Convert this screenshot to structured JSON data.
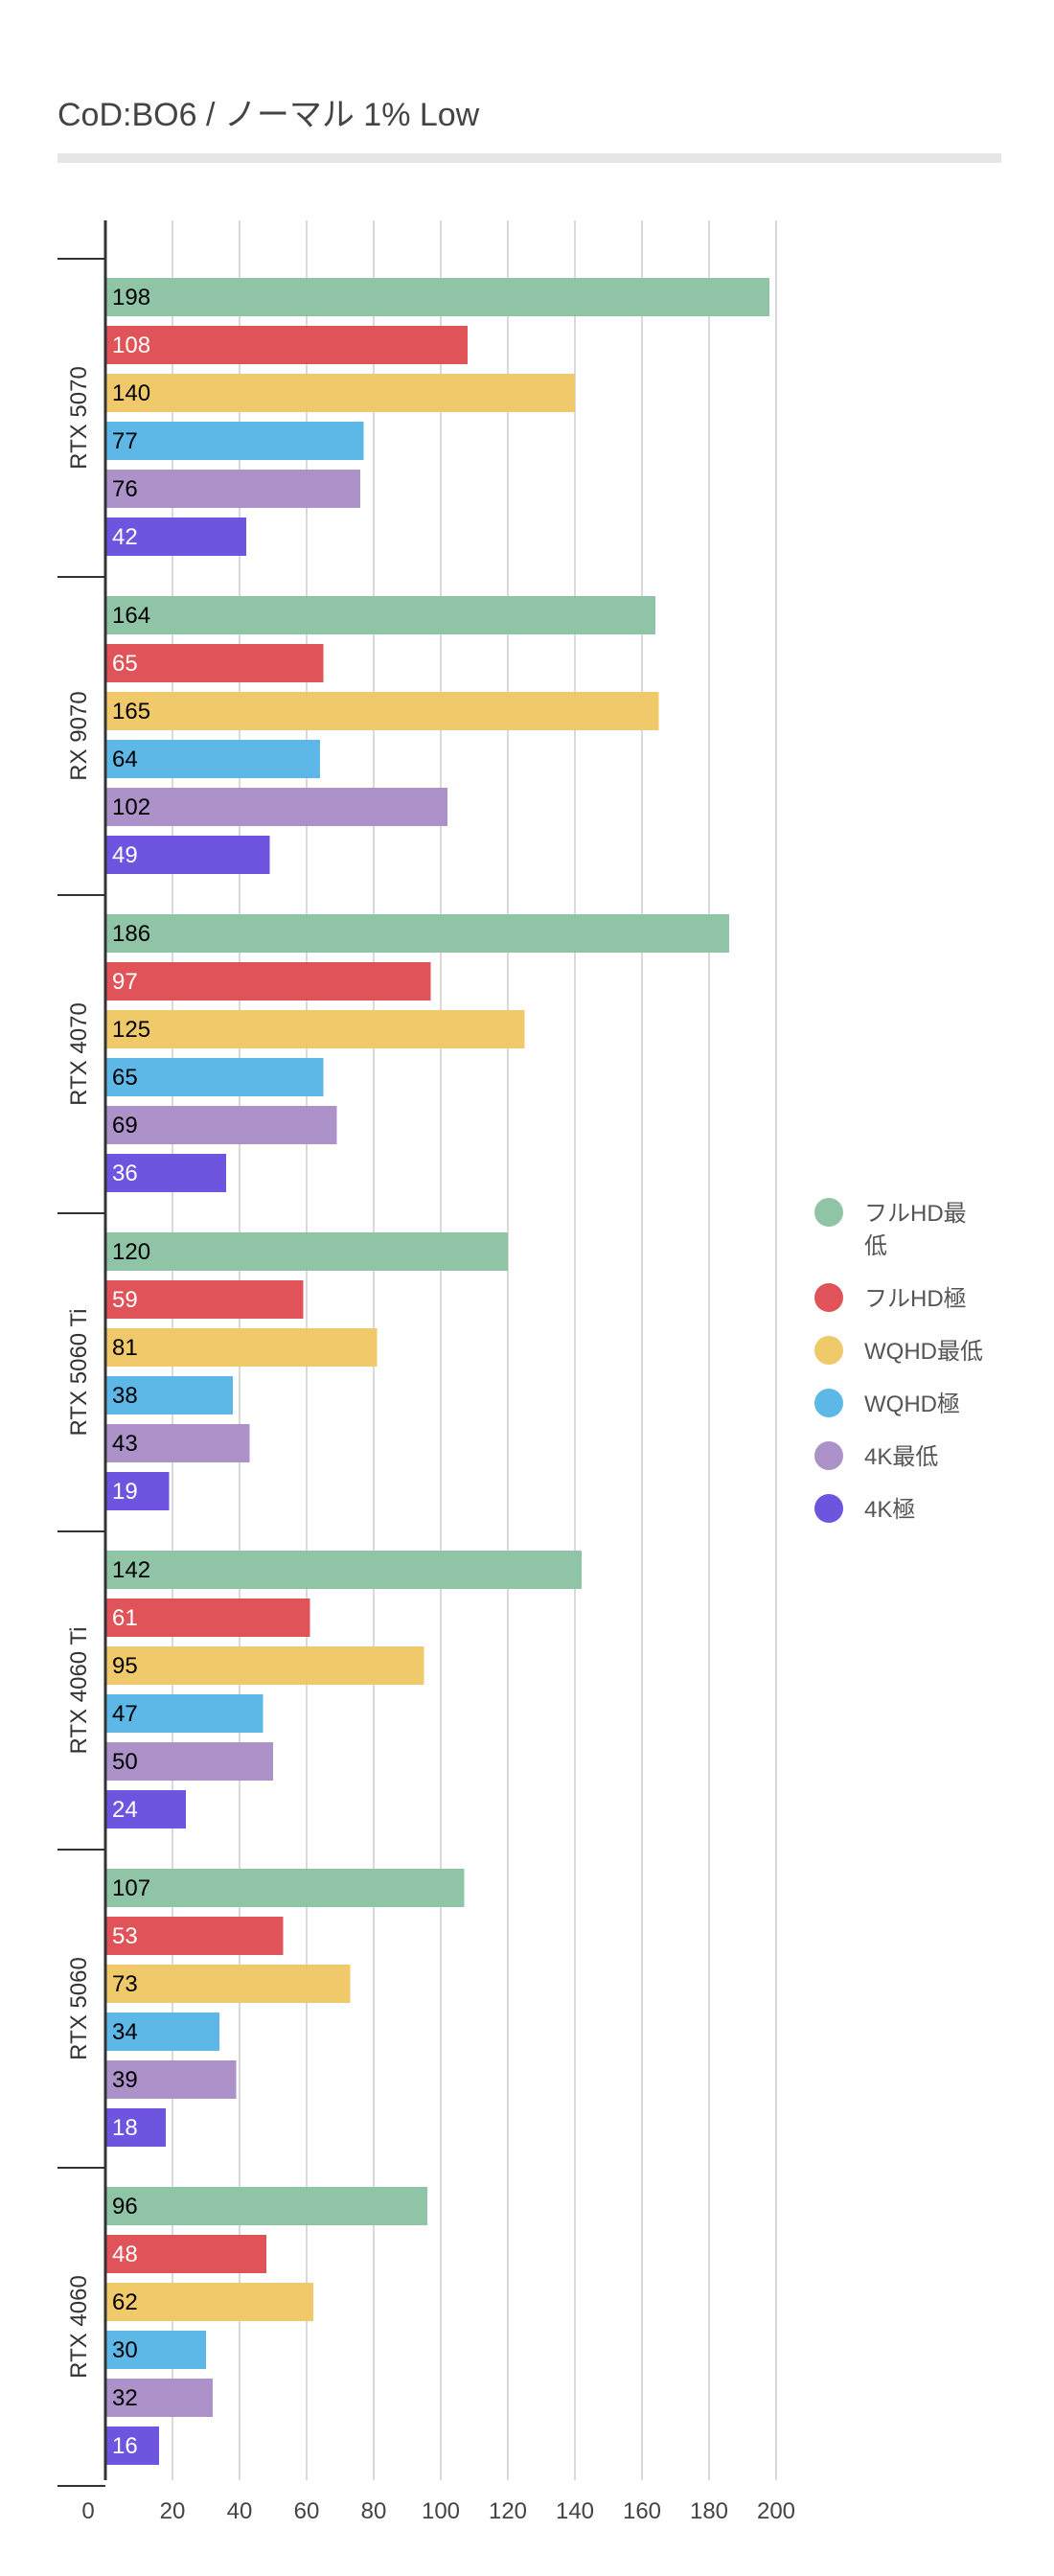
{
  "title": "CoD:BO6 /  ノーマル 1% Low",
  "chart_data": {
    "type": "bar",
    "orientation": "horizontal",
    "title": "CoD:BO6 /  ノーマル 1% Low",
    "xlabel": "",
    "ylabel": "",
    "xlim": [
      0,
      200
    ],
    "x_ticks": [
      0,
      20,
      40,
      60,
      80,
      100,
      120,
      140,
      160,
      180,
      200
    ],
    "grid": true,
    "legend_position": "right",
    "categories": [
      "RTX 5070",
      "RX 9070",
      "RTX 4070",
      "RTX 5060 Ti",
      "RTX 4060 Ti",
      "RTX 5060",
      "RTX 4060"
    ],
    "series": [
      {
        "name": "フルHD最低",
        "color": "#8fc5a6",
        "label_color": "#000000",
        "values": [
          198,
          164,
          186,
          120,
          142,
          107,
          96
        ]
      },
      {
        "name": "フルHD極",
        "color": "#e05358",
        "label_color": "#ffffff",
        "values": [
          108,
          65,
          97,
          59,
          61,
          53,
          48
        ]
      },
      {
        "name": "WQHD最低",
        "color": "#f0c96a",
        "label_color": "#000000",
        "values": [
          140,
          165,
          125,
          81,
          95,
          73,
          62
        ]
      },
      {
        "name": "WQHD極",
        "color": "#5db8e8",
        "label_color": "#000000",
        "values": [
          77,
          64,
          65,
          38,
          47,
          34,
          30
        ]
      },
      {
        "name": "4K最低",
        "color": "#ad92c9",
        "label_color": "#000000",
        "values": [
          76,
          102,
          69,
          43,
          50,
          39,
          32
        ]
      },
      {
        "name": "4K極",
        "color": "#6f54e0",
        "label_color": "#ffffff",
        "values": [
          42,
          49,
          36,
          19,
          24,
          18,
          16
        ]
      }
    ]
  }
}
